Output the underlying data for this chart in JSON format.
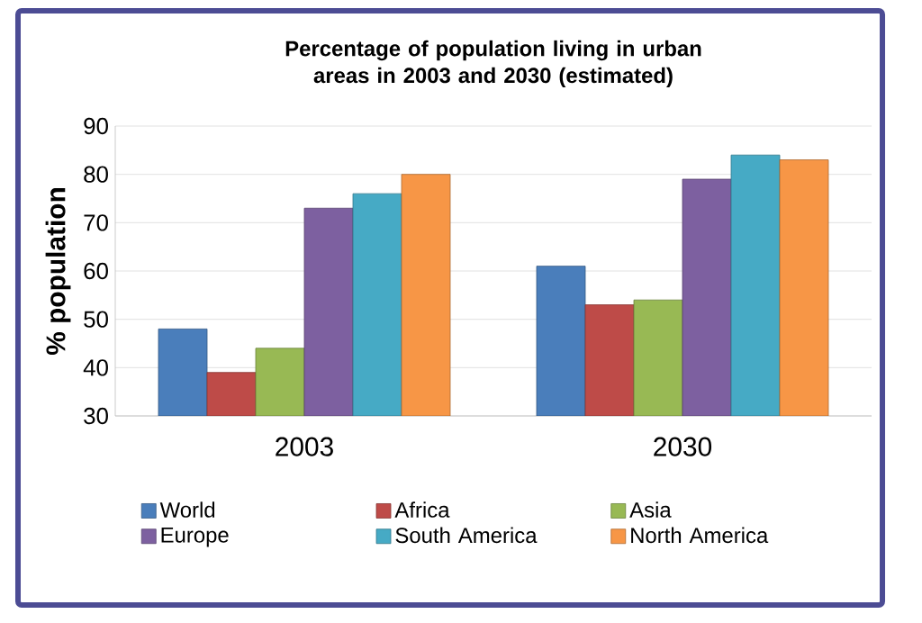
{
  "chart_data": {
    "type": "bar",
    "title": "Percentage of population living in urban areas in 2003 and 2030 (estimated)",
    "ylabel": "% population",
    "categories": [
      "2003",
      "2030"
    ],
    "series": [
      {
        "name": "World",
        "color": "#4a7ebb",
        "values": [
          48,
          61
        ]
      },
      {
        "name": "Africa",
        "color": "#be4b48",
        "values": [
          39,
          53
        ]
      },
      {
        "name": "Asia",
        "color": "#98b954",
        "values": [
          44,
          54
        ]
      },
      {
        "name": "Europe",
        "color": "#7d60a0",
        "values": [
          73,
          79
        ]
      },
      {
        "name": "South America",
        "color": "#46aac5",
        "values": [
          76,
          84
        ]
      },
      {
        "name": "North America",
        "color": "#f79646",
        "values": [
          80,
          83
        ]
      }
    ],
    "ylim": [
      30,
      90
    ],
    "yticks": [
      30,
      40,
      50,
      60,
      70,
      80,
      90
    ],
    "grid": "y",
    "legend": "bottom"
  }
}
